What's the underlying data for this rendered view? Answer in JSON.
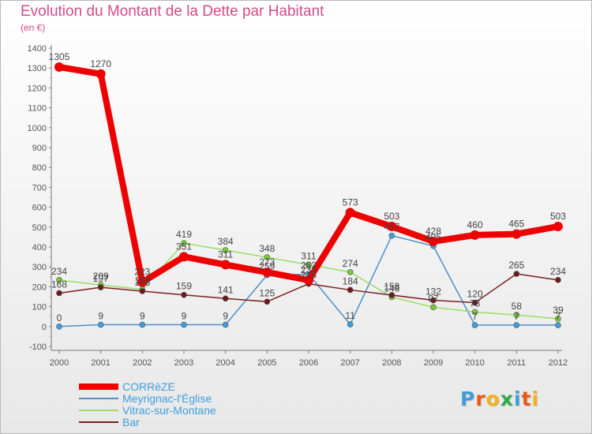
{
  "header": {
    "title": "Evolution du Montant de la Dette par Habitant",
    "subtitle": "(en €)"
  },
  "logo": {
    "letters": [
      {
        "ch": "P",
        "color": "#3f9ddc"
      },
      {
        "ch": "r",
        "color": "#e8591a"
      },
      {
        "ch": "o",
        "color": "#f2b11e"
      },
      {
        "ch": "x",
        "color": "#2eaa4a"
      },
      {
        "ch": "i",
        "color": "#3f9ddc"
      },
      {
        "ch": "t",
        "color": "#e8591a"
      },
      {
        "ch": "i",
        "color": "#f2b11e"
      }
    ]
  },
  "chart_data": {
    "type": "line",
    "title": "Evolution du Montant de la Dette par Habitant",
    "subtitle": "(en €)",
    "x": [
      "2000",
      "2001",
      "2002",
      "2003",
      "2004",
      "2005",
      "2006",
      "2007",
      "2008",
      "2009",
      "2010",
      "2011",
      "2012"
    ],
    "ylim": [
      -100,
      1400
    ],
    "yticks": [
      -100,
      0,
      100,
      200,
      300,
      400,
      500,
      600,
      700,
      800,
      900,
      1000,
      1100,
      1200,
      1300,
      1400
    ],
    "grid": false,
    "legend": "bottom-left",
    "series": [
      {
        "name": "CORRèZE",
        "color": "#ee0000",
        "emphasis": true,
        "values": [
          1305,
          1270,
          223,
          351,
          311,
          273,
          233,
          573,
          503,
          428,
          460,
          465,
          503
        ]
      },
      {
        "name": "Meyrignac-l'Église",
        "color": "#4f8fc8",
        "marker": "#3f9ddc",
        "values": [
          0,
          9,
          9,
          9,
          9,
          259,
          263,
          11,
          457,
          405,
          7,
          7,
          7
        ]
      },
      {
        "name": "Vitrac-sur-Montane",
        "color": "#99dd66",
        "marker": "#77cc33",
        "values": [
          234,
          209,
          187,
          419,
          384,
          348,
          311,
          274,
          148,
          97,
          73,
          58,
          39
        ]
      },
      {
        "name": "Bar",
        "color": "#7a2020",
        "marker": "#6b1a1a",
        "values": [
          168,
          197,
          178,
          159,
          141,
          125,
          215,
          184,
          158,
          132,
          120,
          265,
          234
        ]
      }
    ]
  }
}
